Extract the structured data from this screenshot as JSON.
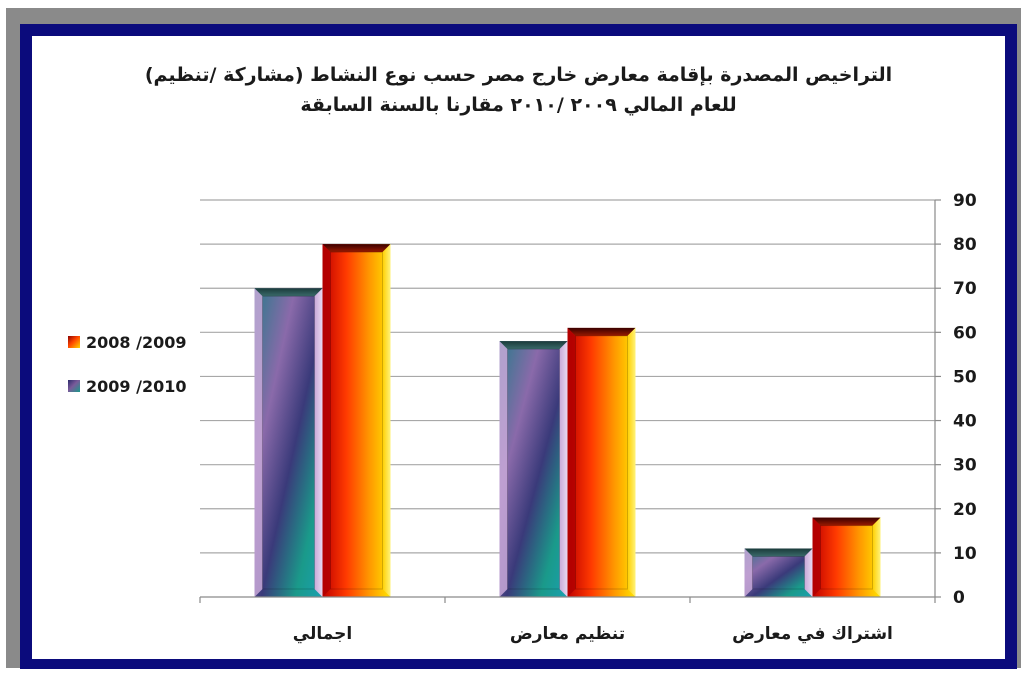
{
  "chart_data": {
    "type": "bar",
    "title": [
      "التراخيص المصدرة بإقامة معارض خارج مصر حسب نوع النشاط (مشاركة /تنظيم)",
      "للعام المالي ٢٠٠٩ /٢٠١٠ مقارنا بالسنة السابقة"
    ],
    "categories": [
      "اجمالي",
      "تنظيم معارض",
      "اشتراك في معارض"
    ],
    "series": [
      {
        "name": "2009 /2010",
        "values": [
          70,
          58,
          11
        ]
      },
      {
        "name": "2008 /2009",
        "values": [
          80,
          61,
          18
        ]
      }
    ],
    "ylim": [
      0,
      90
    ],
    "yticks": [
      "0",
      "10",
      "20",
      "30",
      "40",
      "50",
      "60",
      "70",
      "80",
      "90"
    ],
    "y_axis_side": "right",
    "grid": true,
    "legend_position": "left",
    "colors": {
      "frame_navy": "#0b0b7c",
      "shadow_gray": "#8a8a8a",
      "gridline": "#a8a8a8"
    }
  }
}
